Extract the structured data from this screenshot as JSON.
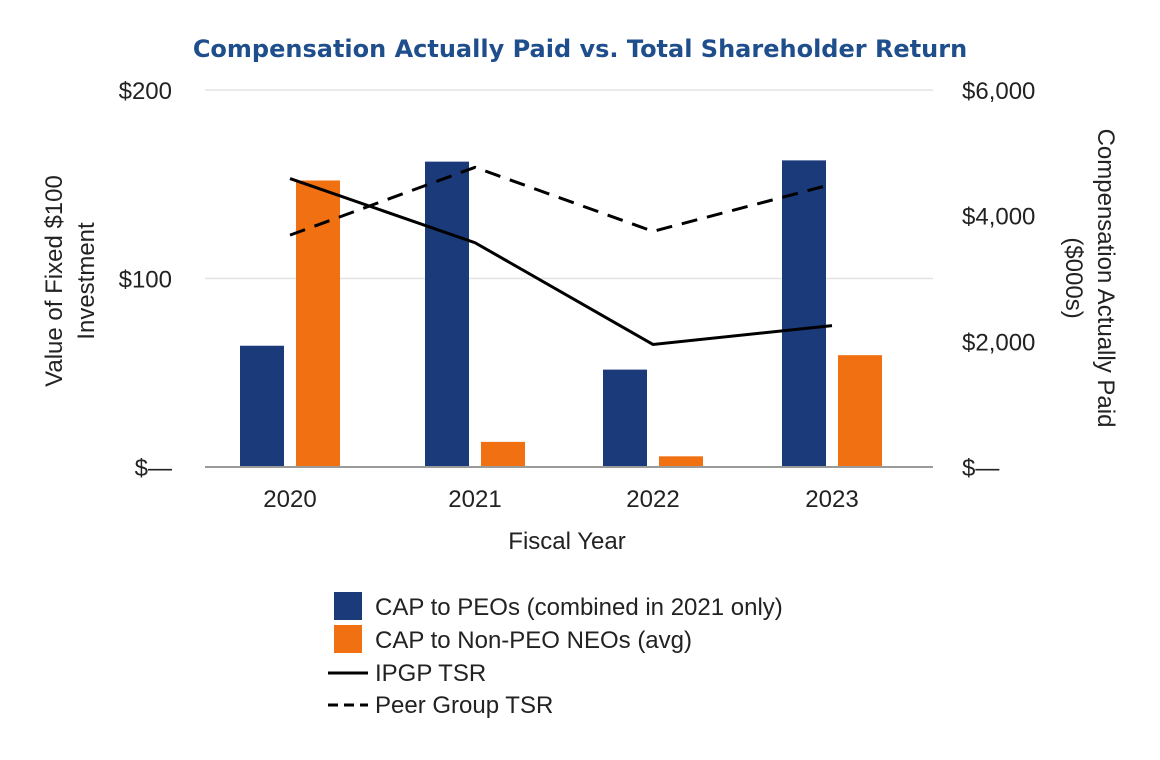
{
  "chart_data": {
    "type": "bar",
    "title": "Compensation Actually Paid vs. Total Shareholder Return",
    "xlabel": "Fiscal Year",
    "ylabel_left": [
      "Value of Fixed $100",
      "Investment"
    ],
    "ylabel_right": [
      "Compensation Actually Paid",
      "($000s)"
    ],
    "categories": [
      "2020",
      "2021",
      "2022",
      "2023"
    ],
    "left_axis": {
      "range": [
        0,
        200
      ],
      "ticks": [
        0,
        100,
        200
      ],
      "tick_labels": [
        "$—",
        "$100",
        "$200"
      ]
    },
    "right_axis": {
      "range": [
        0,
        6000
      ],
      "ticks": [
        0,
        2000,
        4000,
        6000
      ],
      "tick_labels": [
        "$—",
        "$2,000",
        "$4,000",
        "$6,000"
      ]
    },
    "grid": true,
    "legend_position": "bottom",
    "bar_series": [
      {
        "name": "CAP to PEOs (combined in 2021 only)",
        "axis": "right",
        "color": "#1b3a7a",
        "values": [
          1930,
          4860,
          1550,
          4880
        ]
      },
      {
        "name": "CAP to Non-PEO NEOs (avg)",
        "axis": "right",
        "color": "#f07012",
        "values": [
          4560,
          400,
          170,
          1780
        ]
      }
    ],
    "line_series": [
      {
        "name": "IPGP TSR",
        "axis": "left",
        "style": "solid",
        "color": "#000000",
        "values": [
          153,
          119,
          65,
          75
        ]
      },
      {
        "name": "Peer Group TSR",
        "axis": "left",
        "style": "dashed",
        "color": "#000000",
        "values": [
          123,
          159,
          125,
          150
        ]
      }
    ]
  }
}
